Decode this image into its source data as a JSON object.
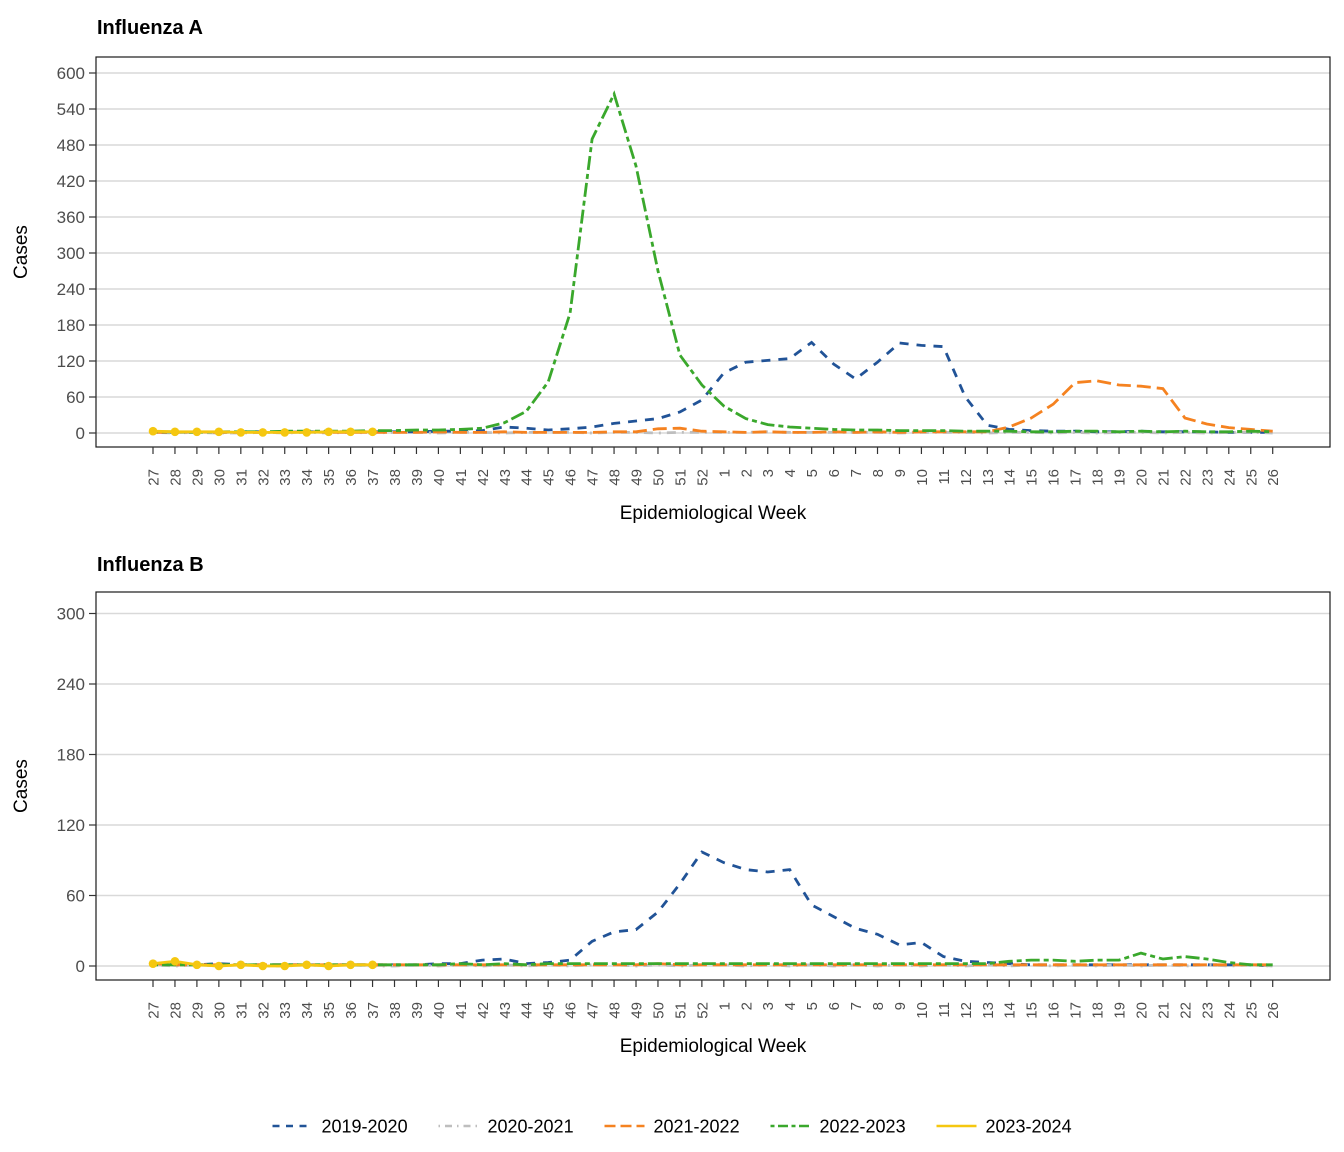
{
  "figure": {
    "background": "#ffffff",
    "grid_color": "#d9d9d9",
    "border_color": "#1a1a1a",
    "tick_color": "#333333",
    "axis_text_color": "#4d4d4d",
    "title_color": "#000000"
  },
  "legend": {
    "position": "bottom-center",
    "items": [
      "2019-2020",
      "2020-2021",
      "2021-2022",
      "2022-2023",
      "2023-2024"
    ]
  },
  "chart_data": [
    {
      "id": "influenza-a",
      "type": "line",
      "title": "Influenza A",
      "xlabel": "Epidemiological Week",
      "ylabel": "Cases",
      "ylim": [
        0,
        600
      ],
      "ytick_step": 60,
      "grid": "horizontal",
      "legend_position": "bottom",
      "ytick_labels": [
        "0",
        "60",
        "120",
        "180",
        "240",
        "300",
        "360",
        "420",
        "480",
        "540",
        "600"
      ],
      "x_categories": [
        "27",
        "28",
        "29",
        "30",
        "31",
        "32",
        "33",
        "34",
        "35",
        "36",
        "37",
        "38",
        "39",
        "40",
        "41",
        "42",
        "43",
        "44",
        "45",
        "46",
        "47",
        "48",
        "49",
        "50",
        "51",
        "52",
        "1",
        "2",
        "3",
        "4",
        "5",
        "6",
        "7",
        "8",
        "9",
        "10",
        "11",
        "12",
        "13",
        "14",
        "15",
        "16",
        "17",
        "18",
        "19",
        "20",
        "21",
        "22",
        "23",
        "24",
        "25",
        "26"
      ],
      "series": [
        {
          "name": "2019-2020",
          "color": "#215397",
          "linetype": "dashed",
          "marker": false,
          "values": [
            2,
            1,
            2,
            1,
            2,
            2,
            1,
            2,
            2,
            2,
            2,
            2,
            2,
            3,
            3,
            4,
            10,
            8,
            5,
            7,
            10,
            16,
            20,
            24,
            35,
            55,
            100,
            118,
            121,
            124,
            151,
            115,
            90,
            118,
            150,
            146,
            144,
            60,
            13,
            6,
            4,
            3,
            3,
            2,
            2,
            3,
            2,
            2,
            2,
            1,
            1,
            1
          ]
        },
        {
          "name": "2020-2021",
          "color": "#bebebe",
          "linetype": "dotdash",
          "marker": false,
          "values": [
            1,
            0,
            1,
            0,
            0,
            1,
            0,
            1,
            0,
            1,
            0,
            1,
            1,
            0,
            1,
            1,
            0,
            1,
            1,
            1,
            0,
            1,
            1,
            0,
            1,
            1,
            1,
            1,
            2,
            1,
            1,
            1,
            1,
            1,
            0,
            1,
            1,
            1,
            0,
            1,
            1,
            0,
            1,
            0,
            1,
            1,
            0,
            1,
            0,
            1,
            1,
            0
          ]
        },
        {
          "name": "2021-2022",
          "color": "#f58220",
          "linetype": "longdash",
          "marker": false,
          "values": [
            1,
            1,
            2,
            1,
            1,
            1,
            1,
            2,
            1,
            1,
            1,
            1,
            1,
            2,
            1,
            1,
            2,
            1,
            1,
            1,
            1,
            2,
            2,
            7,
            8,
            3,
            2,
            1,
            2,
            1,
            1,
            2,
            1,
            2,
            1,
            2,
            2,
            2,
            2,
            10,
            25,
            48,
            84,
            87,
            80,
            78,
            74,
            25,
            15,
            9,
            6,
            3
          ]
        },
        {
          "name": "2022-2023",
          "color": "#3aa82c",
          "linetype": "twodash",
          "marker": false,
          "values": [
            2,
            2,
            1,
            2,
            2,
            2,
            3,
            3,
            3,
            3,
            4,
            4,
            5,
            5,
            6,
            8,
            17,
            36,
            85,
            200,
            490,
            565,
            445,
            270,
            130,
            80,
            45,
            24,
            14,
            10,
            8,
            6,
            5,
            5,
            4,
            4,
            4,
            3,
            3,
            3,
            2,
            2,
            3,
            3,
            2,
            3,
            2,
            3,
            2,
            2,
            3,
            2
          ]
        },
        {
          "name": "2023-2024",
          "color": "#f5c710",
          "linetype": "solid",
          "marker": true,
          "values": [
            3,
            2,
            2,
            2,
            1,
            1,
            1,
            1,
            2,
            2,
            2,
            null,
            null,
            null,
            null,
            null,
            null,
            null,
            null,
            null,
            null,
            null,
            null,
            null,
            null,
            null,
            null,
            null,
            null,
            null,
            null,
            null,
            null,
            null,
            null,
            null,
            null,
            null,
            null,
            null,
            null,
            null,
            null,
            null,
            null,
            null,
            null,
            null,
            null,
            null,
            null,
            null
          ]
        }
      ]
    },
    {
      "id": "influenza-b",
      "type": "line",
      "title": "Influenza B",
      "xlabel": "Epidemiological Week",
      "ylabel": "Cases",
      "ylim": [
        0,
        300
      ],
      "ytick_step": 60,
      "grid": "horizontal",
      "legend_position": "bottom",
      "ytick_labels": [
        "0",
        "60",
        "120",
        "180",
        "240",
        "300"
      ],
      "x_categories": [
        "27",
        "28",
        "29",
        "30",
        "31",
        "32",
        "33",
        "34",
        "35",
        "36",
        "37",
        "38",
        "39",
        "40",
        "41",
        "42",
        "43",
        "44",
        "45",
        "46",
        "47",
        "48",
        "49",
        "50",
        "51",
        "52",
        "1",
        "2",
        "3",
        "4",
        "5",
        "6",
        "7",
        "8",
        "9",
        "10",
        "11",
        "12",
        "13",
        "14",
        "15",
        "16",
        "17",
        "18",
        "19",
        "20",
        "21",
        "22",
        "23",
        "24",
        "25",
        "26"
      ],
      "series": [
        {
          "name": "2019-2020",
          "color": "#215397",
          "linetype": "dashed",
          "marker": false,
          "values": [
            2,
            1,
            1,
            2,
            1,
            1,
            1,
            1,
            1,
            1,
            1,
            1,
            1,
            2,
            2,
            5,
            6,
            2,
            3,
            5,
            21,
            29,
            31,
            46,
            70,
            97,
            88,
            82,
            80,
            82,
            52,
            42,
            32,
            27,
            18,
            20,
            8,
            4,
            3,
            2,
            1,
            1,
            1,
            1,
            1,
            1,
            1,
            1,
            1,
            1,
            1,
            0
          ]
        },
        {
          "name": "2020-2021",
          "color": "#bebebe",
          "linetype": "dotdash",
          "marker": false,
          "values": [
            1,
            0,
            1,
            0,
            1,
            0,
            0,
            1,
            0,
            1,
            0,
            0,
            1,
            0,
            1,
            0,
            1,
            0,
            1,
            0,
            1,
            1,
            0,
            1,
            0,
            1,
            1,
            0,
            1,
            0,
            1,
            0,
            1,
            0,
            1,
            0,
            1,
            0,
            1,
            0,
            1,
            0,
            1,
            0,
            1,
            0,
            1,
            0,
            1,
            0,
            1,
            0
          ]
        },
        {
          "name": "2021-2022",
          "color": "#f58220",
          "linetype": "longdash",
          "marker": false,
          "values": [
            2,
            1,
            1,
            1,
            1,
            1,
            1,
            1,
            1,
            1,
            1,
            1,
            1,
            1,
            1,
            1,
            1,
            1,
            1,
            1,
            1,
            1,
            1,
            2,
            1,
            1,
            1,
            1,
            1,
            1,
            1,
            1,
            1,
            1,
            1,
            1,
            1,
            1,
            1,
            1,
            1,
            1,
            1,
            1,
            1,
            1,
            1,
            1,
            1,
            1,
            1,
            1
          ]
        },
        {
          "name": "2022-2023",
          "color": "#3aa82c",
          "linetype": "twodash",
          "marker": false,
          "values": [
            1,
            1,
            1,
            1,
            1,
            1,
            1,
            1,
            1,
            1,
            1,
            1,
            1,
            1,
            2,
            1,
            2,
            1,
            2,
            2,
            2,
            2,
            2,
            2,
            2,
            2,
            2,
            2,
            2,
            2,
            2,
            2,
            2,
            2,
            2,
            2,
            2,
            2,
            2,
            4,
            5,
            5,
            4,
            5,
            5,
            11,
            6,
            8,
            6,
            3,
            1,
            1
          ]
        },
        {
          "name": "2023-2024",
          "color": "#f5c710",
          "linetype": "solid",
          "marker": true,
          "values": [
            2,
            4,
            1,
            0,
            1,
            0,
            0,
            1,
            0,
            1,
            1,
            null,
            null,
            null,
            null,
            null,
            null,
            null,
            null,
            null,
            null,
            null,
            null,
            null,
            null,
            null,
            null,
            null,
            null,
            null,
            null,
            null,
            null,
            null,
            null,
            null,
            null,
            null,
            null,
            null,
            null,
            null,
            null,
            null,
            null,
            null,
            null,
            null,
            null,
            null,
            null,
            null
          ]
        }
      ]
    }
  ]
}
